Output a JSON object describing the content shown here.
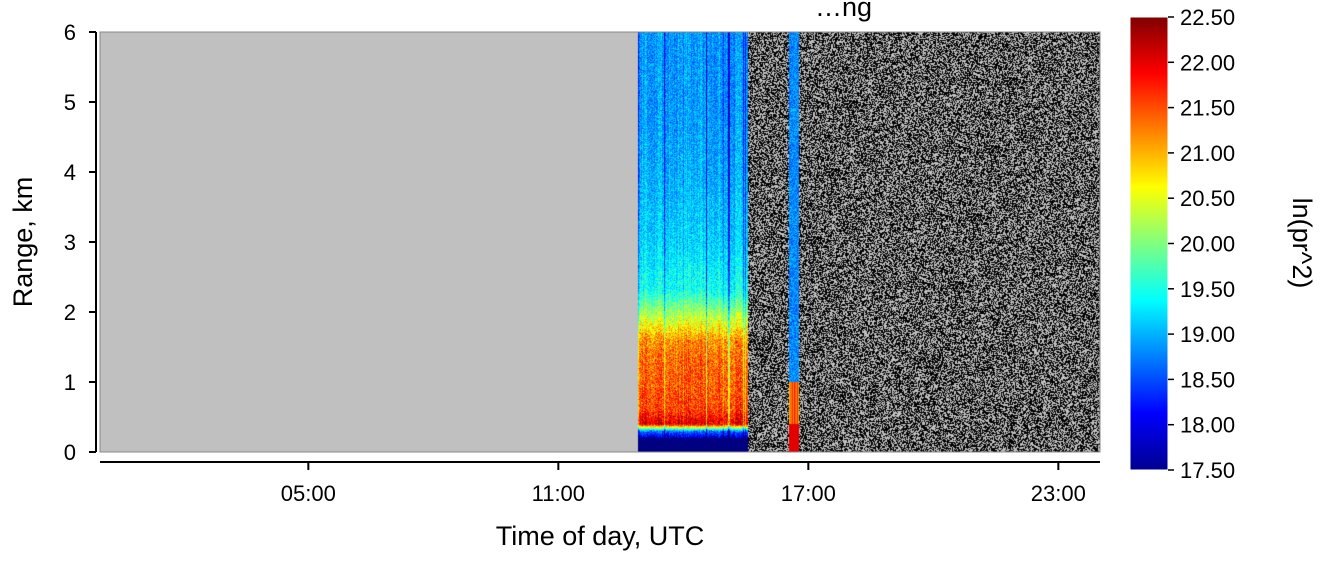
{
  "chart_data": {
    "type": "heatmap",
    "title": "…ng",
    "xlabel": "Time of day, UTC",
    "ylabel": "Range, km",
    "x_ticks": [
      "05:00",
      "11:00",
      "17:00",
      "23:00"
    ],
    "x_tick_hours": [
      5,
      11,
      17,
      23
    ],
    "y_ticks": [
      "0",
      "1",
      "2",
      "3",
      "4",
      "5",
      "6"
    ],
    "y_tick_values": [
      0,
      1,
      2,
      3,
      4,
      5,
      6
    ],
    "ylim": [
      0,
      6
    ],
    "xlim_hours": [
      0,
      24
    ],
    "colorbar": {
      "label": "ln(pr^2)",
      "min": 17.5,
      "max": 22.5,
      "ticks": [
        "22.50",
        "22.00",
        "21.50",
        "21.00",
        "20.50",
        "20.00",
        "19.50",
        "19.00",
        "18.50",
        "18.00",
        "17.50"
      ],
      "colormap": "jet"
    },
    "regions": {
      "no_data": {
        "from_hour": 0,
        "to_hour": 12.9,
        "color": "#c0c0c0"
      },
      "signal": {
        "from_hour": 12.9,
        "to_hour": 15.55
      },
      "noise": {
        "from_hour": 15.55,
        "to_hour": 24
      }
    },
    "profile": {
      "range_km": [
        0,
        0.2,
        0.3,
        0.4,
        0.6,
        0.9,
        1.3,
        1.6,
        1.9,
        2.3,
        3,
        4,
        5,
        6
      ],
      "ln_pr2": [
        17.5,
        17.8,
        18.8,
        22.1,
        21.6,
        21.5,
        21.4,
        21.2,
        20.4,
        19.5,
        19.2,
        19.0,
        18.9,
        18.9
      ]
    }
  }
}
